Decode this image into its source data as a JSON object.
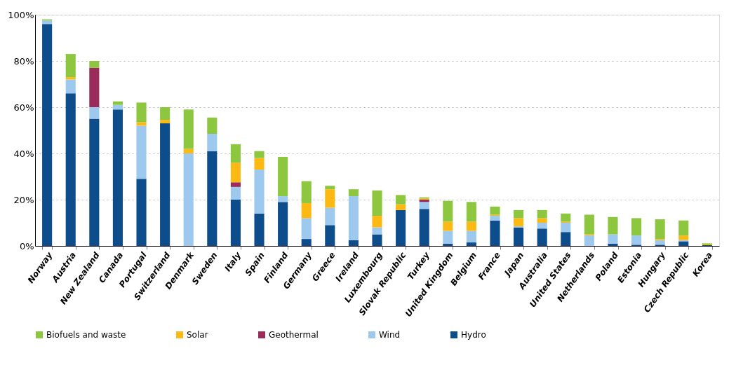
{
  "chart_data": {
    "type": "bar",
    "stacked": true,
    "categories": [
      "Norway",
      "Austria",
      "New Zealand",
      "Canada",
      "Portugal",
      "Switzerland",
      "Denmark",
      "Sweden",
      "Italy",
      "Spain",
      "Finland",
      "Germany",
      "Greece",
      "Ireland",
      "Luxembourg",
      "Slovak Republic",
      "Turkey",
      "United Kingdom",
      "Belgium",
      "France",
      "Japan",
      "Australia",
      "United States",
      "Netherlands",
      "Poland",
      "Estonia",
      "Hungary",
      "Czech Republic",
      "Korea"
    ],
    "series": [
      {
        "name": "Hydro",
        "color": "#0e4d8c",
        "values": [
          96,
          66,
          55,
          59,
          29,
          53,
          0,
          41,
          20,
          14,
          19,
          3,
          9,
          2.5,
          5,
          15.5,
          16,
          1,
          1.5,
          11,
          8,
          7.5,
          6,
          0,
          1,
          0.5,
          0.5,
          2,
          0.3
        ]
      },
      {
        "name": "Wind",
        "color": "#9dc9ef",
        "values": [
          1.5,
          6,
          5,
          2,
          23,
          0,
          40,
          7.5,
          5.5,
          19,
          2.5,
          9,
          7.5,
          19,
          3,
          0,
          3,
          5.5,
          5,
          2,
          0.5,
          2.5,
          4,
          4.5,
          4,
          4,
          2,
          0.5,
          0
        ]
      },
      {
        "name": "Geothermal",
        "color": "#9b2b5a",
        "values": [
          0,
          0,
          17,
          0,
          0,
          0,
          0,
          0,
          2,
          0,
          0,
          0,
          0,
          0,
          0,
          0,
          1,
          0,
          0,
          0,
          0,
          0,
          0,
          0,
          0,
          0,
          0,
          0,
          0
        ]
      },
      {
        "name": "Solar",
        "color": "#fdb913",
        "values": [
          0,
          1,
          0,
          0,
          1.5,
          1.5,
          2,
          0,
          8.5,
          5,
          0,
          6.5,
          8,
          0,
          5,
          2.5,
          0.5,
          4,
          4,
          0.5,
          3.5,
          2,
          0.5,
          0.5,
          0,
          0,
          0.5,
          2,
          0.3
        ]
      },
      {
        "name": "Biofuels and waste",
        "color": "#8dc63f",
        "values": [
          0.5,
          10,
          3,
          1.5,
          8.5,
          5.5,
          17,
          7,
          8,
          3,
          17,
          9.5,
          1.5,
          3,
          11,
          4,
          0.5,
          9,
          8.5,
          3.5,
          3.5,
          3.5,
          3.5,
          8.5,
          7.5,
          7.5,
          8.5,
          6.5,
          0.5
        ]
      }
    ],
    "ylim": [
      0,
      100
    ],
    "yticks": [
      {
        "value": 0,
        "label": "0%"
      },
      {
        "value": 20,
        "label": "20%"
      },
      {
        "value": 40,
        "label": "40%"
      },
      {
        "value": 60,
        "label": "60%"
      },
      {
        "value": 80,
        "label": "80%"
      },
      {
        "value": 100,
        "label": "100%"
      }
    ],
    "grid": "y",
    "legend": "bottom"
  }
}
